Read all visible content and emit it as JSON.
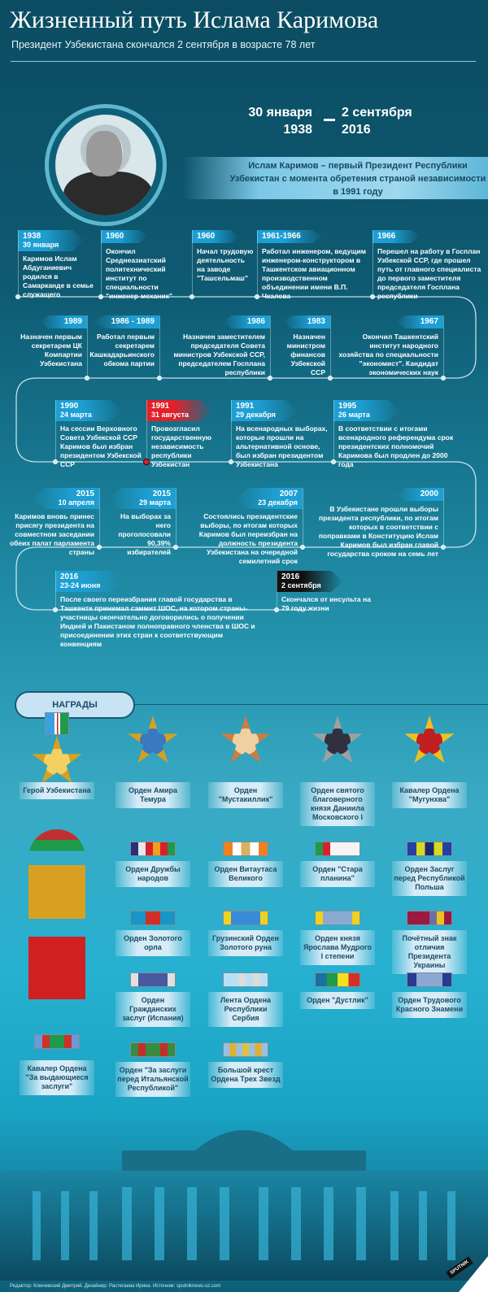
{
  "header": {
    "title": "Жизненный путь Ислама Каримова",
    "subtitle": "Президент Узбекистана скончался 2 сентября в возрасте 78 лет"
  },
  "lifespan": {
    "birth_day": "30 января",
    "birth_year": "1938",
    "death_day": "2 сентября",
    "death_year": "2016"
  },
  "intro": "Ислам Каримов – первый Президент Республики Узбекистан с момента обретения страной независимости в 1991 году",
  "timeline": [
    {
      "year": "1938",
      "date": "30 января",
      "text": "Каримов Ислам Абдуганиевич родился в Самарканде в семье служащего",
      "color": "blue"
    },
    {
      "year": "1960",
      "date": "",
      "text": "Окончил Среднеазиатский политехнический институт по специальности \"инженер-механик\"",
      "color": "blue"
    },
    {
      "year": "1960",
      "date": "",
      "text": "Начал трудовую деятельность на заводе \"Ташсельмаш\"",
      "color": "blue"
    },
    {
      "year": "1961-1966",
      "date": "",
      "text": "Работал инженером, ведущим инженером-конструктором в Ташкентском авиационном производственном объединении имени В.П. Чкалова",
      "color": "blue"
    },
    {
      "year": "1966",
      "date": "",
      "text": "Перешел на работу в Госплан Узбекской ССР, где прошел путь от главного специалиста до первого заместителя председателя Госплана республики",
      "color": "blue"
    },
    {
      "year": "1989",
      "date": "",
      "text": "Назначен первым секретарем ЦК Компартии Узбекистана",
      "color": "blue"
    },
    {
      "year": "1986 - 1989",
      "date": "",
      "text": "Работал первым секретарем Кашкадарьинского обкома партии",
      "color": "blue"
    },
    {
      "year": "1986",
      "date": "",
      "text": "Назначен заместителем председателя Совета министров Узбекской ССР, председателем Госплана республики",
      "color": "blue"
    },
    {
      "year": "1983",
      "date": "",
      "text": "Назначен министром финансов Узбекской ССР",
      "color": "blue"
    },
    {
      "year": "1967",
      "date": "",
      "text": "Окончил Ташкентский институт народного хозяйства по специальности \"экономист\". Кандидат экономических наук",
      "color": "blue"
    },
    {
      "year": "1990",
      "date": "24 марта",
      "text": "На сессии Верховного Совета Узбекской ССР Каримов был избран президентом Узбекской ССР",
      "color": "blue"
    },
    {
      "year": "1991",
      "date": "31 августа",
      "text": "Провозгласил государственную независимость республики Узбекистан",
      "color": "red"
    },
    {
      "year": "1991",
      "date": "29 декабря",
      "text": "На всенародных выборах, которые прошли на альтернативной основе, был избран президентом Узбекистана",
      "color": "blue"
    },
    {
      "year": "1995",
      "date": "26 марта",
      "text": "В соответствии с итогами всенародного референдума срок президентских полномочий Каримова был продлен до 2000 года",
      "color": "blue"
    },
    {
      "year": "2015",
      "date": "10 апреля",
      "text": "Каримов вновь принес присягу президента на совместном заседании обеих палат парламента страны",
      "color": "blue"
    },
    {
      "year": "2015",
      "date": "29 марта",
      "text": "На выборах за него проголосовали 90,39% избирателей",
      "color": "blue"
    },
    {
      "year": "2007",
      "date": "23 декабря",
      "text": "Состоялись президентские выборы, по итогам которых Каримов был переизбран на должность президента Узбекистана на очередной семилетний срок",
      "color": "blue"
    },
    {
      "year": "2000",
      "date": "",
      "text": "В Узбекистане прошли выборы президента республики, по итогам которых в соответствии с поправками в Конституцию Ислам Каримов был избран главой государства сроком на семь лет",
      "color": "blue"
    },
    {
      "year": "2016",
      "date": "23-24 июня",
      "text": "После своего переизбрания главой государства в Ташкенте принимал саммит ШОС, на котором страны-участницы окончательно договорились о получении Индией и Пакистаном полноправного членства в ШОС и присоединении этих стран к соответствующим конвенциям",
      "color": "blue"
    },
    {
      "year": "2016",
      "date": "2 сентября",
      "text": "Скончался от инсульта на 79 году жизни",
      "color": "black"
    }
  ],
  "awards": {
    "heading": "НАГРАДЫ",
    "medals": [
      "Герой Узбекистана",
      "Орден Амира Темура",
      "Орден \"Мустакиллик\"",
      "Орден святого благоверного князя Даниила Московского I",
      "Кавалер Ордена \"Мугунхва\""
    ],
    "ribbons": [
      {
        "name": "Орден Дружбы народов",
        "stripes": [
          "#2b2f7a",
          "#e8e8e8",
          "#d8202a",
          "#f0a020",
          "#d8202a",
          "#1f9a4a"
        ]
      },
      {
        "name": "Орден Витаутаса Великого",
        "stripes": [
          "#f08020",
          "#ffffff",
          "#d8b060",
          "#ffffff",
          "#f08020"
        ]
      },
      {
        "name": "Орден \"Стара планина\"",
        "stripes": [
          "#1f9a4a",
          "#d8202a",
          "#f4f4f4",
          "#f4f4f4",
          "#f4f4f4",
          "#f4f4f4"
        ]
      },
      {
        "name": "Орден Заслуг перед Республикой Польша",
        "stripes": [
          "#2440a0",
          "#d8d820",
          "#1a2a70",
          "#d8d820",
          "#2440a0"
        ]
      },
      {
        "name": "Орден Золотого орла",
        "stripes": [
          "#1796c8",
          "#d03028",
          "#1796c8"
        ]
      },
      {
        "name": "Грузинский Орден Золотого руна",
        "stripes": [
          "#f0d020",
          "#3a8ad8",
          "#3a8ad8",
          "#3a8ad8",
          "#3a8ad8",
          "#f0d020"
        ]
      },
      {
        "name": "Орден князя Ярослава Мудрого I степени",
        "stripes": [
          "#f0d020",
          "#8aaad0",
          "#8aaad0",
          "#8aaad0",
          "#8aaad0",
          "#f0d020"
        ]
      },
      {
        "name": "Почётный знак отличия Президента Украины",
        "stripes": [
          "#9a1a40",
          "#9a1a40",
          "#9a1a40",
          "#6a70a0",
          "#f0c020",
          "#9a1a40"
        ]
      },
      {
        "name": "Орден Гражданских заслуг (Испания)",
        "stripes": [
          "#e0e0e0",
          "#4a58a0",
          "#4a58a0",
          "#4a58a0",
          "#4a58a0",
          "#e0e0e0"
        ]
      },
      {
        "name": "Лента Ордена Республики Сербия",
        "stripes": [
          "#b8e0f4",
          "#b8e0f4",
          "#dcdcdc",
          "#b8e0f4",
          "#dcdcdc",
          "#b8e0f4"
        ]
      },
      {
        "name": "Орден \"Дустлик\"",
        "stripes": [
          "#1a70a0",
          "#1f9a4a",
          "#f0e020",
          "#d03028"
        ]
      },
      {
        "name": "Орден Трудового Красного Знамени",
        "stripes": [
          "#2a3a90",
          "#8aa8d0",
          "#8aa8d0",
          "#8aa8d0",
          "#2a3a90"
        ]
      },
      {
        "name": "Кавалер Ордена \"За выдающиеся заслуги\"",
        "stripes": [
          "#6a9ad8",
          "#d03028",
          "#1f9a4a",
          "#1f9a4a",
          "#d03028",
          "#6a9ad8"
        ]
      },
      {
        "name": "Орден \"За заслуги перед Итальянской Республикой\"",
        "stripes": [
          "#3a8a40",
          "#c03028",
          "#3a8a40",
          "#3a8a40",
          "#c03028",
          "#3a8a40"
        ]
      },
      {
        "name": "Большой крест Ордена Трех Звезд",
        "stripes": [
          "#9ac0e0",
          "#e0b030",
          "#9ac0e0",
          "#e0c040",
          "#9ac0e0",
          "#e0b030",
          "#9ac0e0"
        ]
      }
    ]
  },
  "footer": "Редактор: Ключевский Дмитрий. Дизайнер: Растегаева Ирина. Источник: sputniknews-uz.com",
  "logo": "SPUTNIK",
  "colors": {
    "accent_blue": "#1d9fd4",
    "accent_red": "#e4202a",
    "label_bg": "#d7ecf7",
    "dark_text": "#1c4b63"
  }
}
